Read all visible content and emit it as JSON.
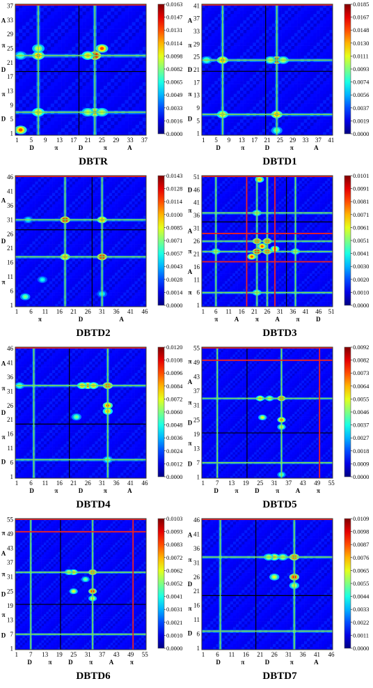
{
  "chart_data": [
    {
      "type": "heatmap",
      "title": "DBTR",
      "n": 37,
      "xticks": [
        "1",
        "5",
        "9",
        "13",
        "17",
        "21",
        "25",
        "29",
        "33",
        "37"
      ],
      "yticks": [
        "1",
        "5",
        "9",
        "13",
        "17",
        "21",
        "25",
        "29",
        "33",
        "37"
      ],
      "regions_x": [
        "D",
        "π",
        "D",
        "π",
        "A"
      ],
      "regions_y": [
        "D",
        "π",
        "D",
        "π",
        "A"
      ],
      "colorbar": [
        "0.0163",
        "0.0147",
        "0.0131",
        "0.0114",
        "0.0098",
        "0.0082",
        "0.0065",
        "0.0049",
        "0.0033",
        "0.0016",
        "0.0000"
      ],
      "max": 0.0163,
      "green_lines": [
        7,
        23
      ],
      "red_lines": [],
      "black_lines": [
        18.5,
        18.5
      ],
      "hotspots": [
        [
          7,
          7,
          0.7
        ],
        [
          7,
          23,
          0.8
        ],
        [
          23,
          7,
          0.8
        ],
        [
          23,
          23,
          1.0
        ],
        [
          21,
          7,
          0.6
        ],
        [
          25,
          7,
          0.6
        ],
        [
          7,
          25,
          0.6
        ],
        [
          21,
          23,
          0.7
        ],
        [
          25,
          25,
          0.8
        ],
        [
          2,
          2,
          0.8
        ],
        [
          2,
          23,
          0.5
        ]
      ]
    },
    {
      "type": "heatmap",
      "title": "DBTD1",
      "n": 41,
      "xticks": [
        "1",
        "5",
        "9",
        "13",
        "17",
        "21",
        "25",
        "29",
        "33",
        "37",
        "41"
      ],
      "yticks": [
        "1",
        "5",
        "9",
        "13",
        "17",
        "21",
        "25",
        "29",
        "33",
        "37",
        "41"
      ],
      "regions_x": [
        "D",
        "π",
        "D",
        "π",
        "A"
      ],
      "regions_y": [
        "D",
        "π",
        "D",
        "π",
        "A"
      ],
      "colorbar": [
        "0.0185",
        "0.0167",
        "0.0148",
        "0.0130",
        "0.0111",
        "0.0093",
        "0.0074",
        "0.0056",
        "0.0037",
        "0.0019",
        "0.0000"
      ],
      "max": 0.0185,
      "green_lines": [
        7,
        24
      ],
      "red_lines": [],
      "black_lines": [
        20.5,
        20.5
      ],
      "hotspots": [
        [
          7,
          7,
          0.7
        ],
        [
          7,
          24,
          0.8
        ],
        [
          24,
          7,
          0.8
        ],
        [
          24,
          24,
          1.0
        ],
        [
          22,
          24,
          0.6
        ],
        [
          26,
          24,
          0.6
        ],
        [
          2,
          24,
          0.5
        ],
        [
          24,
          2,
          0.5
        ]
      ]
    },
    {
      "type": "heatmap",
      "title": "DBTD2",
      "n": 46,
      "xticks": [
        "1",
        "6",
        "11",
        "16",
        "21",
        "26",
        "31",
        "36",
        "41",
        "46"
      ],
      "yticks": [
        "1",
        "6",
        "11",
        "16",
        "21",
        "26",
        "31",
        "36",
        "41",
        "46"
      ],
      "regions_x": [
        "π",
        "D",
        "A"
      ],
      "regions_y": [
        "π",
        "D",
        "A"
      ],
      "colorbar": [
        "0.0143",
        "0.0128",
        "0.0114",
        "0.0100",
        "0.0085",
        "0.0071",
        "0.0057",
        "0.0043",
        "0.0028",
        "0.0014",
        "0.0000"
      ],
      "max": 0.0143,
      "green_lines": [
        18,
        31
      ],
      "red_lines": [],
      "black_lines": [
        27.5,
        27.5
      ],
      "hotspots": [
        [
          18,
          18,
          0.8
        ],
        [
          18,
          31,
          1.0
        ],
        [
          31,
          18,
          1.0
        ],
        [
          31,
          31,
          0.8
        ],
        [
          4,
          4,
          0.5
        ],
        [
          10,
          10,
          0.4
        ],
        [
          5,
          31,
          0.4
        ],
        [
          31,
          5,
          0.4
        ]
      ]
    },
    {
      "type": "heatmap",
      "title": "DBTD3",
      "n": 51,
      "xticks": [
        "1",
        "6",
        "11",
        "16",
        "21",
        "26",
        "31",
        "36",
        "41",
        "46",
        "51"
      ],
      "yticks": [
        "1",
        "6",
        "11",
        "16",
        "21",
        "26",
        "31",
        "36",
        "41",
        "46",
        "51"
      ],
      "regions_x": [
        "π",
        "A",
        "π",
        "A",
        "π",
        "D"
      ],
      "regions_y": [
        "π",
        "A",
        "π",
        "A",
        "π",
        "D"
      ],
      "colorbar": [
        "0.0101",
        "0.0091",
        "0.0081",
        "0.0071",
        "0.0061",
        "0.0051",
        "0.0041",
        "0.0030",
        "0.0020",
        "0.0010",
        "0.0000"
      ],
      "max": 0.0101,
      "green_lines": [
        6,
        22,
        26,
        37
      ],
      "red_lines": [
        18,
        29
      ],
      "black_lines": [
        33.5,
        33.5
      ],
      "hotspots": [
        [
          22,
          22,
          1.0
        ],
        [
          26,
          26,
          0.9
        ],
        [
          22,
          26,
          0.9
        ],
        [
          26,
          22,
          0.9
        ],
        [
          20,
          20,
          0.8
        ],
        [
          24,
          24,
          0.8
        ],
        [
          6,
          22,
          0.6
        ],
        [
          22,
          6,
          0.6
        ],
        [
          37,
          22,
          0.6
        ],
        [
          22,
          37,
          0.6
        ],
        [
          29,
          23,
          0.7
        ],
        [
          23,
          50,
          0.7
        ]
      ]
    },
    {
      "type": "heatmap",
      "title": "DBTD4",
      "n": 46,
      "xticks": [
        "1",
        "6",
        "11",
        "16",
        "21",
        "26",
        "31",
        "36",
        "41",
        "46"
      ],
      "yticks": [
        "1",
        "6",
        "11",
        "16",
        "21",
        "26",
        "31",
        "36",
        "41",
        "46"
      ],
      "regions_x": [
        "D",
        "π",
        "D",
        "π",
        "A"
      ],
      "regions_y": [
        "D",
        "π",
        "D",
        "π",
        "A"
      ],
      "colorbar": [
        "0.0120",
        "0.0108",
        "0.0096",
        "0.0084",
        "0.0072",
        "0.0060",
        "0.0048",
        "0.0036",
        "0.0024",
        "0.0012",
        "0.0000"
      ],
      "max": 0.012,
      "green_lines": [
        7,
        33
      ],
      "red_lines": [],
      "black_lines": [
        19.5,
        19.5
      ],
      "hotspots": [
        [
          33,
          33,
          0.9
        ],
        [
          33,
          26,
          0.8
        ],
        [
          26,
          33,
          0.8
        ],
        [
          24,
          33,
          0.7
        ],
        [
          33,
          24,
          0.7
        ],
        [
          28,
          33,
          0.7
        ],
        [
          2,
          33,
          0.5
        ],
        [
          33,
          7,
          0.5
        ],
        [
          22,
          22,
          0.5
        ]
      ]
    },
    {
      "type": "heatmap",
      "title": "DBTD5",
      "n": 55,
      "xticks": [
        "1",
        "7",
        "13",
        "19",
        "25",
        "31",
        "37",
        "43",
        "49",
        "55"
      ],
      "yticks": [
        "1",
        "7",
        "13",
        "19",
        "25",
        "31",
        "37",
        "43",
        "49",
        "55"
      ],
      "regions_x": [
        "D",
        "π",
        "D",
        "π",
        "A",
        "π"
      ],
      "regions_y": [
        "D",
        "π",
        "D",
        "π",
        "A",
        "π"
      ],
      "colorbar": [
        "0.0092",
        "0.0082",
        "0.0073",
        "0.0064",
        "0.0055",
        "0.0046",
        "0.0037",
        "0.0027",
        "0.0018",
        "0.0009",
        "0.0000"
      ],
      "max": 0.0092,
      "green_lines": [
        7,
        34
      ],
      "red_lines": [
        50
      ],
      "black_lines": [
        19.5,
        19.5
      ],
      "hotspots": [
        [
          34,
          34,
          0.9
        ],
        [
          34,
          25,
          0.8
        ],
        [
          25,
          34,
          0.7
        ],
        [
          26,
          26,
          0.6
        ],
        [
          34,
          22,
          0.6
        ],
        [
          29,
          34,
          0.6
        ],
        [
          34,
          2,
          0.5
        ]
      ]
    },
    {
      "type": "heatmap",
      "title": "DBTD6",
      "n": 55,
      "xticks": [
        "1",
        "7",
        "13",
        "19",
        "25",
        "31",
        "37",
        "43",
        "49",
        "55"
      ],
      "yticks": [
        "1",
        "7",
        "13",
        "19",
        "25",
        "31",
        "37",
        "43",
        "49",
        "55"
      ],
      "regions_x": [
        "D",
        "π",
        "D",
        "π",
        "A",
        "π"
      ],
      "regions_y": [
        "D",
        "π",
        "D",
        "π",
        "A",
        "π"
      ],
      "colorbar": [
        "0.0103",
        "0.0093",
        "0.0083",
        "0.0072",
        "0.0062",
        "0.0052",
        "0.0041",
        "0.0031",
        "0.0021",
        "0.0010",
        "0.0000"
      ],
      "max": 0.0103,
      "green_lines": [
        7,
        33
      ],
      "red_lines": [
        50
      ],
      "black_lines": [
        19.5,
        19.5
      ],
      "hotspots": [
        [
          33,
          33,
          0.9
        ],
        [
          33,
          25,
          0.9
        ],
        [
          25,
          33,
          0.7
        ],
        [
          25,
          25,
          0.6
        ],
        [
          23,
          33,
          0.6
        ],
        [
          33,
          22,
          0.6
        ],
        [
          30,
          30,
          0.5
        ]
      ]
    },
    {
      "type": "heatmap",
      "title": "DBTD7",
      "n": 46,
      "xticks": [
        "1",
        "6",
        "11",
        "16",
        "21",
        "26",
        "31",
        "36",
        "41",
        "46"
      ],
      "yticks": [
        "1",
        "6",
        "11",
        "16",
        "21",
        "26",
        "31",
        "36",
        "41",
        "46"
      ],
      "regions_x": [
        "D",
        "π",
        "D",
        "π",
        "A"
      ],
      "regions_y": [
        "D",
        "π",
        "D",
        "π",
        "A"
      ],
      "colorbar": [
        "0.0109",
        "0.0098",
        "0.0087",
        "0.0076",
        "0.0065",
        "0.0055",
        "0.0044",
        "0.0033",
        "0.0022",
        "0.0011",
        "0.0000"
      ],
      "max": 0.0109,
      "green_lines": [
        7,
        33
      ],
      "red_lines": [],
      "black_lines": [
        19.5,
        19.5
      ],
      "hotspots": [
        [
          33,
          33,
          0.9
        ],
        [
          33,
          26,
          0.9
        ],
        [
          26,
          33,
          0.7
        ],
        [
          26,
          26,
          0.6
        ],
        [
          24,
          33,
          0.6
        ],
        [
          33,
          23,
          0.6
        ],
        [
          29,
          33,
          0.6
        ]
      ]
    }
  ]
}
